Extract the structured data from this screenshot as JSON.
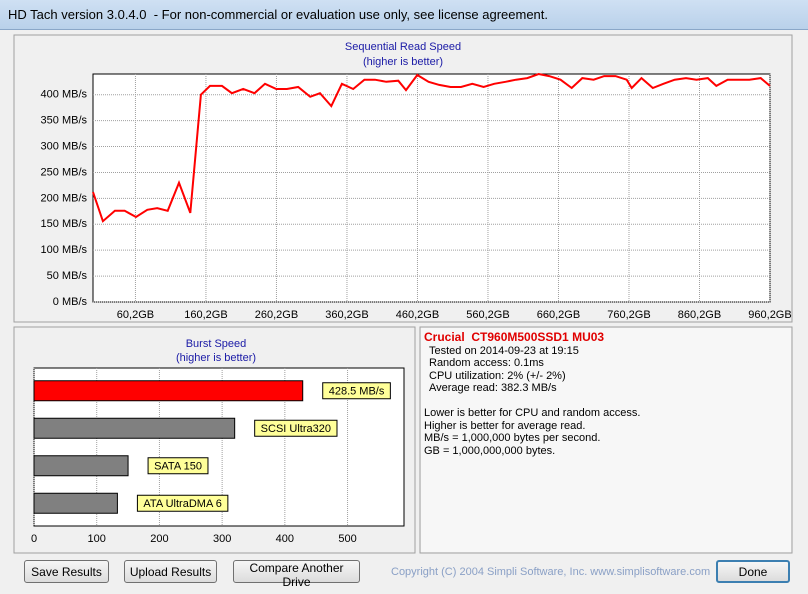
{
  "window_title": "HD Tach version 3.0.4.0  - For non-commercial or evaluation use only, see license agreement.",
  "chart_data": [
    {
      "type": "line",
      "title": "Sequential Read Speed",
      "subtitle": "(higher is better)",
      "x": [
        0,
        14,
        31,
        45,
        61,
        77,
        91,
        106,
        122,
        138,
        153,
        166,
        183,
        197,
        213,
        229,
        244,
        260,
        275,
        291,
        308,
        322,
        338,
        353,
        369,
        385,
        400,
        416,
        433,
        444,
        460,
        476,
        491,
        507,
        522,
        538,
        554,
        569,
        585,
        600,
        616,
        632,
        647,
        663,
        679,
        694,
        710,
        725,
        741,
        757,
        764,
        778,
        794,
        809,
        825,
        841,
        856,
        872,
        884,
        900,
        916,
        931,
        947,
        960
      ],
      "values": [
        212,
        156,
        176,
        176,
        164,
        178,
        181,
        176,
        230,
        172,
        400,
        417,
        417,
        403,
        411,
        403,
        421,
        411,
        411,
        415,
        396,
        403,
        378,
        421,
        411,
        429,
        429,
        425,
        427,
        409,
        438,
        425,
        419,
        415,
        415,
        421,
        415,
        421,
        425,
        429,
        432,
        440,
        436,
        429,
        413,
        432,
        429,
        436,
        436,
        429,
        413,
        432,
        413,
        421,
        429,
        432,
        429,
        432,
        417,
        429,
        429,
        429,
        432,
        417
      ],
      "color": "#ff0000",
      "xlim": [
        0,
        960.2
      ],
      "xticks": [
        {
          "value": 60.2,
          "label": "60,2GB"
        },
        {
          "value": 160.2,
          "label": "160,2GB"
        },
        {
          "value": 260.2,
          "label": "260,2GB"
        },
        {
          "value": 360.2,
          "label": "360,2GB"
        },
        {
          "value": 460.2,
          "label": "460,2GB"
        },
        {
          "value": 560.2,
          "label": "560,2GB"
        },
        {
          "value": 660.2,
          "label": "660,2GB"
        },
        {
          "value": 760.2,
          "label": "760,2GB"
        },
        {
          "value": 860.2,
          "label": "860,2GB"
        },
        {
          "value": 960.2,
          "label": "960,2GB"
        }
      ],
      "ylim": [
        0,
        440
      ],
      "yticks": [
        {
          "value": 0,
          "label": "0 MB/s"
        },
        {
          "value": 50,
          "label": "50 MB/s"
        },
        {
          "value": 100,
          "label": "100 MB/s"
        },
        {
          "value": 150,
          "label": "150 MB/s"
        },
        {
          "value": 200,
          "label": "200 MB/s"
        },
        {
          "value": 250,
          "label": "250 MB/s"
        },
        {
          "value": 300,
          "label": "300 MB/s"
        },
        {
          "value": 350,
          "label": "350 MB/s"
        },
        {
          "value": 400,
          "label": "400 MB/s"
        }
      ],
      "grid": true
    },
    {
      "type": "hbar",
      "title": "Burst Speed",
      "subtitle": "(higher is better)",
      "categories": [
        null,
        "SCSI Ultra320",
        "SATA 150",
        "ATA UltraDMA 6"
      ],
      "values": [
        428.5,
        320,
        150,
        133
      ],
      "value_labels": [
        "428.5 MB/s",
        null,
        null,
        null
      ],
      "colors": [
        "#ff0000",
        "#808080",
        "#808080",
        "#808080"
      ],
      "xlim": [
        0,
        590
      ],
      "xticks": [
        0,
        100,
        200,
        300,
        400,
        500
      ],
      "grid": true
    }
  ],
  "info": {
    "drive": "Crucial  CT960M500SSD1 MU03",
    "lines": [
      "Tested on 2014-09-23 at 19:15",
      "Random access: 0.1ms",
      "CPU utilization: 2% (+/- 2%)",
      "Average read: 382.3 MB/s"
    ],
    "notes": [
      "Lower is better for CPU and random access.",
      "Higher is better for average read.",
      "MB/s = 1,000,000 bytes per second.",
      "GB = 1,000,000,000 bytes."
    ]
  },
  "buttons": [
    "Save Results",
    "Upload Results",
    "Compare Another Drive",
    "Done"
  ],
  "copyright": "Copyright (C) 2004 Simpli Software, Inc. www.simplisoftware.com"
}
